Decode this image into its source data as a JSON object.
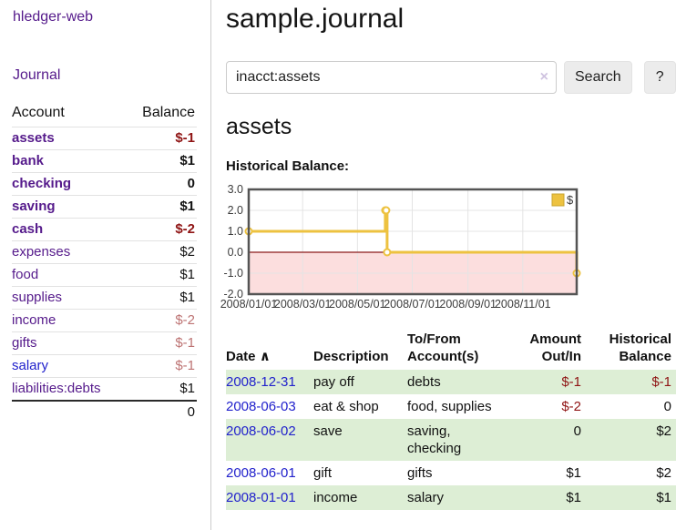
{
  "app": {
    "title": "hledger-web"
  },
  "sidebar": {
    "journal_link": "Journal",
    "account_table": {
      "headers": {
        "account": "Account",
        "balance": "Balance"
      },
      "rows": [
        {
          "account": "assets",
          "balance": "$-1"
        },
        {
          "account": "bank",
          "balance": "$1"
        },
        {
          "account": "checking",
          "balance": "0"
        },
        {
          "account": "saving",
          "balance": "$1"
        },
        {
          "account": "cash",
          "balance": "$-2"
        },
        {
          "account": "expenses",
          "balance": "$2"
        },
        {
          "account": "food",
          "balance": "$1"
        },
        {
          "account": "supplies",
          "balance": "$1"
        },
        {
          "account": "income",
          "balance": "$-2"
        },
        {
          "account": "gifts",
          "balance": "$-1"
        },
        {
          "account": "salary",
          "balance": "$-1"
        },
        {
          "account": "liabilities:debts",
          "balance": "$1"
        }
      ],
      "total": "0"
    }
  },
  "main": {
    "title": "sample.journal",
    "search": {
      "value": "inacct:assets",
      "clear_icon": "×",
      "search_button": "Search",
      "help_button": "?"
    },
    "account_heading": "assets",
    "chart_title": "Historical Balance:"
  },
  "chart_data": {
    "type": "line",
    "line_style": "steps",
    "series": [
      {
        "name": "$",
        "color": "#edc240",
        "points": [
          [
            "2008-01-01",
            1
          ],
          [
            "2008-06-01",
            2
          ],
          [
            "2008-06-02",
            2
          ],
          [
            "2008-06-03",
            0
          ],
          [
            "2008-12-31",
            -1
          ]
        ]
      }
    ],
    "xlim": [
      "2008-01-01",
      "2008-12-31"
    ],
    "ylim": [
      -2,
      3
    ],
    "y_ticks": [
      3,
      2,
      1,
      0,
      -1,
      -2
    ],
    "x_ticks": [
      "2008/01/01",
      "2008/03/01",
      "2008/05/01",
      "2008/07/01",
      "2008/09/01",
      "2008/11/01"
    ],
    "legend": {
      "label": "$",
      "position": "top-right"
    },
    "grid": true,
    "negative_region_color": "#fcdede",
    "zero_line_color": "#8b1a1a",
    "border_color": "#545454",
    "grid_color": "#e4e4e4",
    "tick_label_color": "#3c3c3c"
  },
  "register": {
    "headers": {
      "date": "Date",
      "sort_icon": "∧",
      "description": "Description",
      "accounts": "To/From Account(s)",
      "amount": "Amount Out/In",
      "balance": "Historical Balance"
    },
    "rows": [
      {
        "date": "2008-12-31",
        "description": "pay off",
        "accounts": "debts",
        "amount": "$-1",
        "balance": "$-1"
      },
      {
        "date": "2008-06-03",
        "description": "eat & shop",
        "accounts": "food, supplies",
        "amount": "$-2",
        "balance": "0"
      },
      {
        "date": "2008-06-02",
        "description": "save",
        "accounts": "saving, checking",
        "amount": "0",
        "balance": "$2"
      },
      {
        "date": "2008-06-01",
        "description": "gift",
        "accounts": "gifts",
        "amount": "$1",
        "balance": "$2"
      },
      {
        "date": "2008-01-01",
        "description": "income",
        "accounts": "salary",
        "amount": "$1",
        "balance": "$1"
      }
    ]
  },
  "colors": {
    "link_purple": "#551a8b",
    "link_blue": "#2222cc",
    "negative_strong": "#8f1414",
    "negative_soft": "#bd7373",
    "row_stripe_green": "#ddeed5",
    "chart_line": "#edc240"
  }
}
